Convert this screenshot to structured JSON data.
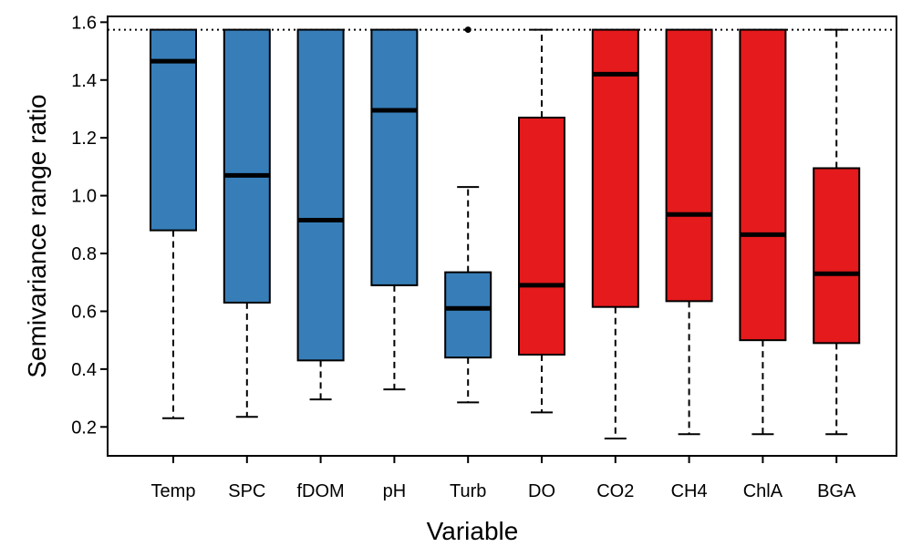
{
  "chart_data": {
    "type": "boxplot",
    "xlabel": "Variable",
    "ylabel": "Semivariance range ratio",
    "ylim": [
      0.1,
      1.62
    ],
    "yticks": [
      0.2,
      0.4,
      0.6,
      0.8,
      1.0,
      1.2,
      1.4,
      1.6
    ],
    "ytick_labels": [
      "0.2",
      "0.4",
      "0.6",
      "0.8",
      "1.0",
      "1.2",
      "1.4",
      "1.6"
    ],
    "reference_line": 1.574,
    "grid": false,
    "legend": "none",
    "categories": [
      "Temp",
      "SPC",
      "fDOM",
      "pH",
      "Turb",
      "DO",
      "CO2",
      "CH4",
      "ChlA",
      "BGA"
    ],
    "boxes": [
      {
        "category": "Temp",
        "whisker_low": 0.23,
        "q1": 0.88,
        "median": 1.465,
        "q3": 1.574,
        "whisker_high": 1.574,
        "color": "#377EB8",
        "outliers": []
      },
      {
        "category": "SPC",
        "whisker_low": 0.235,
        "q1": 0.63,
        "median": 1.07,
        "q3": 1.574,
        "whisker_high": 1.574,
        "color": "#377EB8",
        "outliers": []
      },
      {
        "category": "fDOM",
        "whisker_low": 0.295,
        "q1": 0.43,
        "median": 0.915,
        "q3": 1.574,
        "whisker_high": 1.574,
        "color": "#377EB8",
        "outliers": []
      },
      {
        "category": "pH",
        "whisker_low": 0.33,
        "q1": 0.69,
        "median": 1.295,
        "q3": 1.574,
        "whisker_high": 1.574,
        "color": "#377EB8",
        "outliers": []
      },
      {
        "category": "Turb",
        "whisker_low": 0.285,
        "q1": 0.44,
        "median": 0.61,
        "q3": 0.735,
        "whisker_high": 1.03,
        "color": "#377EB8",
        "outliers": [
          1.574
        ]
      },
      {
        "category": "DO",
        "whisker_low": 0.25,
        "q1": 0.45,
        "median": 0.69,
        "q3": 1.27,
        "whisker_high": 1.574,
        "color": "#E41A1C",
        "outliers": []
      },
      {
        "category": "CO2",
        "whisker_low": 0.16,
        "q1": 0.615,
        "median": 1.42,
        "q3": 1.574,
        "whisker_high": 1.574,
        "color": "#E41A1C",
        "outliers": []
      },
      {
        "category": "CH4",
        "whisker_low": 0.175,
        "q1": 0.635,
        "median": 0.935,
        "q3": 1.574,
        "whisker_high": 1.574,
        "color": "#E41A1C",
        "outliers": []
      },
      {
        "category": "ChlA",
        "whisker_low": 0.175,
        "q1": 0.5,
        "median": 0.865,
        "q3": 1.574,
        "whisker_high": 1.574,
        "color": "#E41A1C",
        "outliers": []
      },
      {
        "category": "BGA",
        "whisker_low": 0.175,
        "q1": 0.49,
        "median": 0.73,
        "q3": 1.095,
        "whisker_high": 1.574,
        "color": "#E41A1C",
        "outliers": []
      }
    ]
  }
}
